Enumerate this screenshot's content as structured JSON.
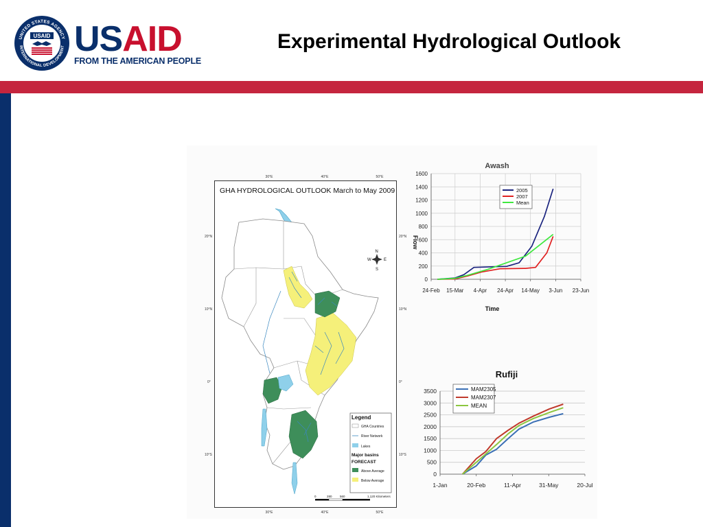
{
  "header": {
    "brand_us": "US",
    "brand_aid": "AID",
    "tagline": "FROM THE AMERICAN PEOPLE",
    "seal_text_top": "UNITED STATES AGENCY",
    "seal_text_bottom": "INTERNATIONAL DEVELOPMENT",
    "seal_center": "USAID",
    "title": "Experimental Hydrological Outlook"
  },
  "colors": {
    "navy": "#0a2f6b",
    "red": "#c5253e",
    "above_average": "#3e8e5a",
    "below_average": "#f5f07a",
    "lakes": "#8fd0ea"
  },
  "map": {
    "title": "GHA HYDROLOGICAL OUTLOOK March to May 2009",
    "lon_labels": [
      "30°E",
      "40°E",
      "50°E"
    ],
    "lat_labels": [
      "20°N",
      "10°N",
      "0°",
      "10°S"
    ],
    "compass": {
      "n": "N",
      "s": "S",
      "e": "E",
      "w": "W"
    },
    "scale": {
      "ticks": [
        "0",
        "280",
        "560",
        "1,120 Kilometers"
      ]
    },
    "legend": {
      "title": "Legend",
      "items": [
        "GHA Countries",
        "River Network",
        "Lakes"
      ],
      "major_basins": "Major basins",
      "forecast": "FORECAST",
      "forecast_items": [
        "Above Average",
        "Below Average"
      ]
    }
  },
  "chart_data": [
    {
      "type": "line",
      "title": "Awash",
      "xlabel": "Time",
      "ylabel": "Flow",
      "x_ticks": [
        "24-Feb",
        "15-Mar",
        "4-Apr",
        "24-Apr",
        "14-May",
        "3-Jun",
        "23-Jun"
      ],
      "ylim": [
        0,
        1600
      ],
      "y_ticks": [
        0,
        200,
        400,
        600,
        800,
        1000,
        1200,
        1400,
        1600
      ],
      "grid": true,
      "legend_position": "top-right",
      "series": [
        {
          "name": "2005",
          "color": "#1a237e",
          "points": [
            [
              "2009-03-01",
              0
            ],
            [
              "2009-03-15",
              20
            ],
            [
              "2009-03-22",
              70
            ],
            [
              "2009-03-30",
              180
            ],
            [
              "2009-04-15",
              190
            ],
            [
              "2009-04-25",
              195
            ],
            [
              "2009-05-05",
              250
            ],
            [
              "2009-05-15",
              500
            ],
            [
              "2009-05-25",
              950
            ],
            [
              "2009-06-01",
              1370
            ]
          ]
        },
        {
          "name": "2007",
          "color": "#e02020",
          "points": [
            [
              "2009-03-01",
              0
            ],
            [
              "2009-03-15",
              5
            ],
            [
              "2009-03-25",
              50
            ],
            [
              "2009-04-05",
              110
            ],
            [
              "2009-04-20",
              160
            ],
            [
              "2009-05-10",
              165
            ],
            [
              "2009-05-18",
              180
            ],
            [
              "2009-05-27",
              400
            ],
            [
              "2009-06-01",
              650
            ]
          ]
        },
        {
          "name": "Mean",
          "color": "#3ee83e",
          "points": [
            [
              "2009-03-01",
              0
            ],
            [
              "2009-03-15",
              15
            ],
            [
              "2009-03-25",
              60
            ],
            [
              "2009-04-10",
              150
            ],
            [
              "2009-04-25",
              250
            ],
            [
              "2009-05-10",
              350
            ],
            [
              "2009-05-20",
              500
            ],
            [
              "2009-06-01",
              680
            ]
          ]
        }
      ]
    },
    {
      "type": "line",
      "title": "Rufiji",
      "xlabel": "",
      "ylabel": "",
      "x_ticks": [
        "1-Jan",
        "20-Feb",
        "11-Apr",
        "31-May",
        "20-Jul"
      ],
      "ylim": [
        0,
        3500
      ],
      "y_ticks": [
        0,
        500,
        1000,
        1500,
        2000,
        2500,
        3000,
        3500
      ],
      "grid": true,
      "legend_position": "top-left",
      "series": [
        {
          "name": "MAM2305",
          "color": "#3a6fb5",
          "points": [
            [
              "2009-02-01",
              0
            ],
            [
              "2009-02-20",
              350
            ],
            [
              "2009-03-05",
              800
            ],
            [
              "2009-03-20",
              1050
            ],
            [
              "2009-04-05",
              1500
            ],
            [
              "2009-04-20",
              1900
            ],
            [
              "2009-05-10",
              2200
            ],
            [
              "2009-06-01",
              2400
            ],
            [
              "2009-06-20",
              2550
            ]
          ]
        },
        {
          "name": "MAM2307",
          "color": "#c0392b",
          "points": [
            [
              "2009-02-01",
              0
            ],
            [
              "2009-02-20",
              650
            ],
            [
              "2009-03-05",
              950
            ],
            [
              "2009-03-20",
              1500
            ],
            [
              "2009-04-05",
              1850
            ],
            [
              "2009-04-20",
              2150
            ],
            [
              "2009-05-10",
              2450
            ],
            [
              "2009-06-01",
              2750
            ],
            [
              "2009-06-20",
              2950
            ]
          ]
        },
        {
          "name": "MEAN",
          "color": "#8cc63f",
          "points": [
            [
              "2009-02-01",
              0
            ],
            [
              "2009-02-20",
              500
            ],
            [
              "2009-03-05",
              850
            ],
            [
              "2009-03-20",
              1250
            ],
            [
              "2009-04-05",
              1700
            ],
            [
              "2009-04-20",
              2050
            ],
            [
              "2009-05-10",
              2350
            ],
            [
              "2009-06-01",
              2600
            ],
            [
              "2009-06-20",
              2800
            ]
          ]
        }
      ]
    }
  ]
}
